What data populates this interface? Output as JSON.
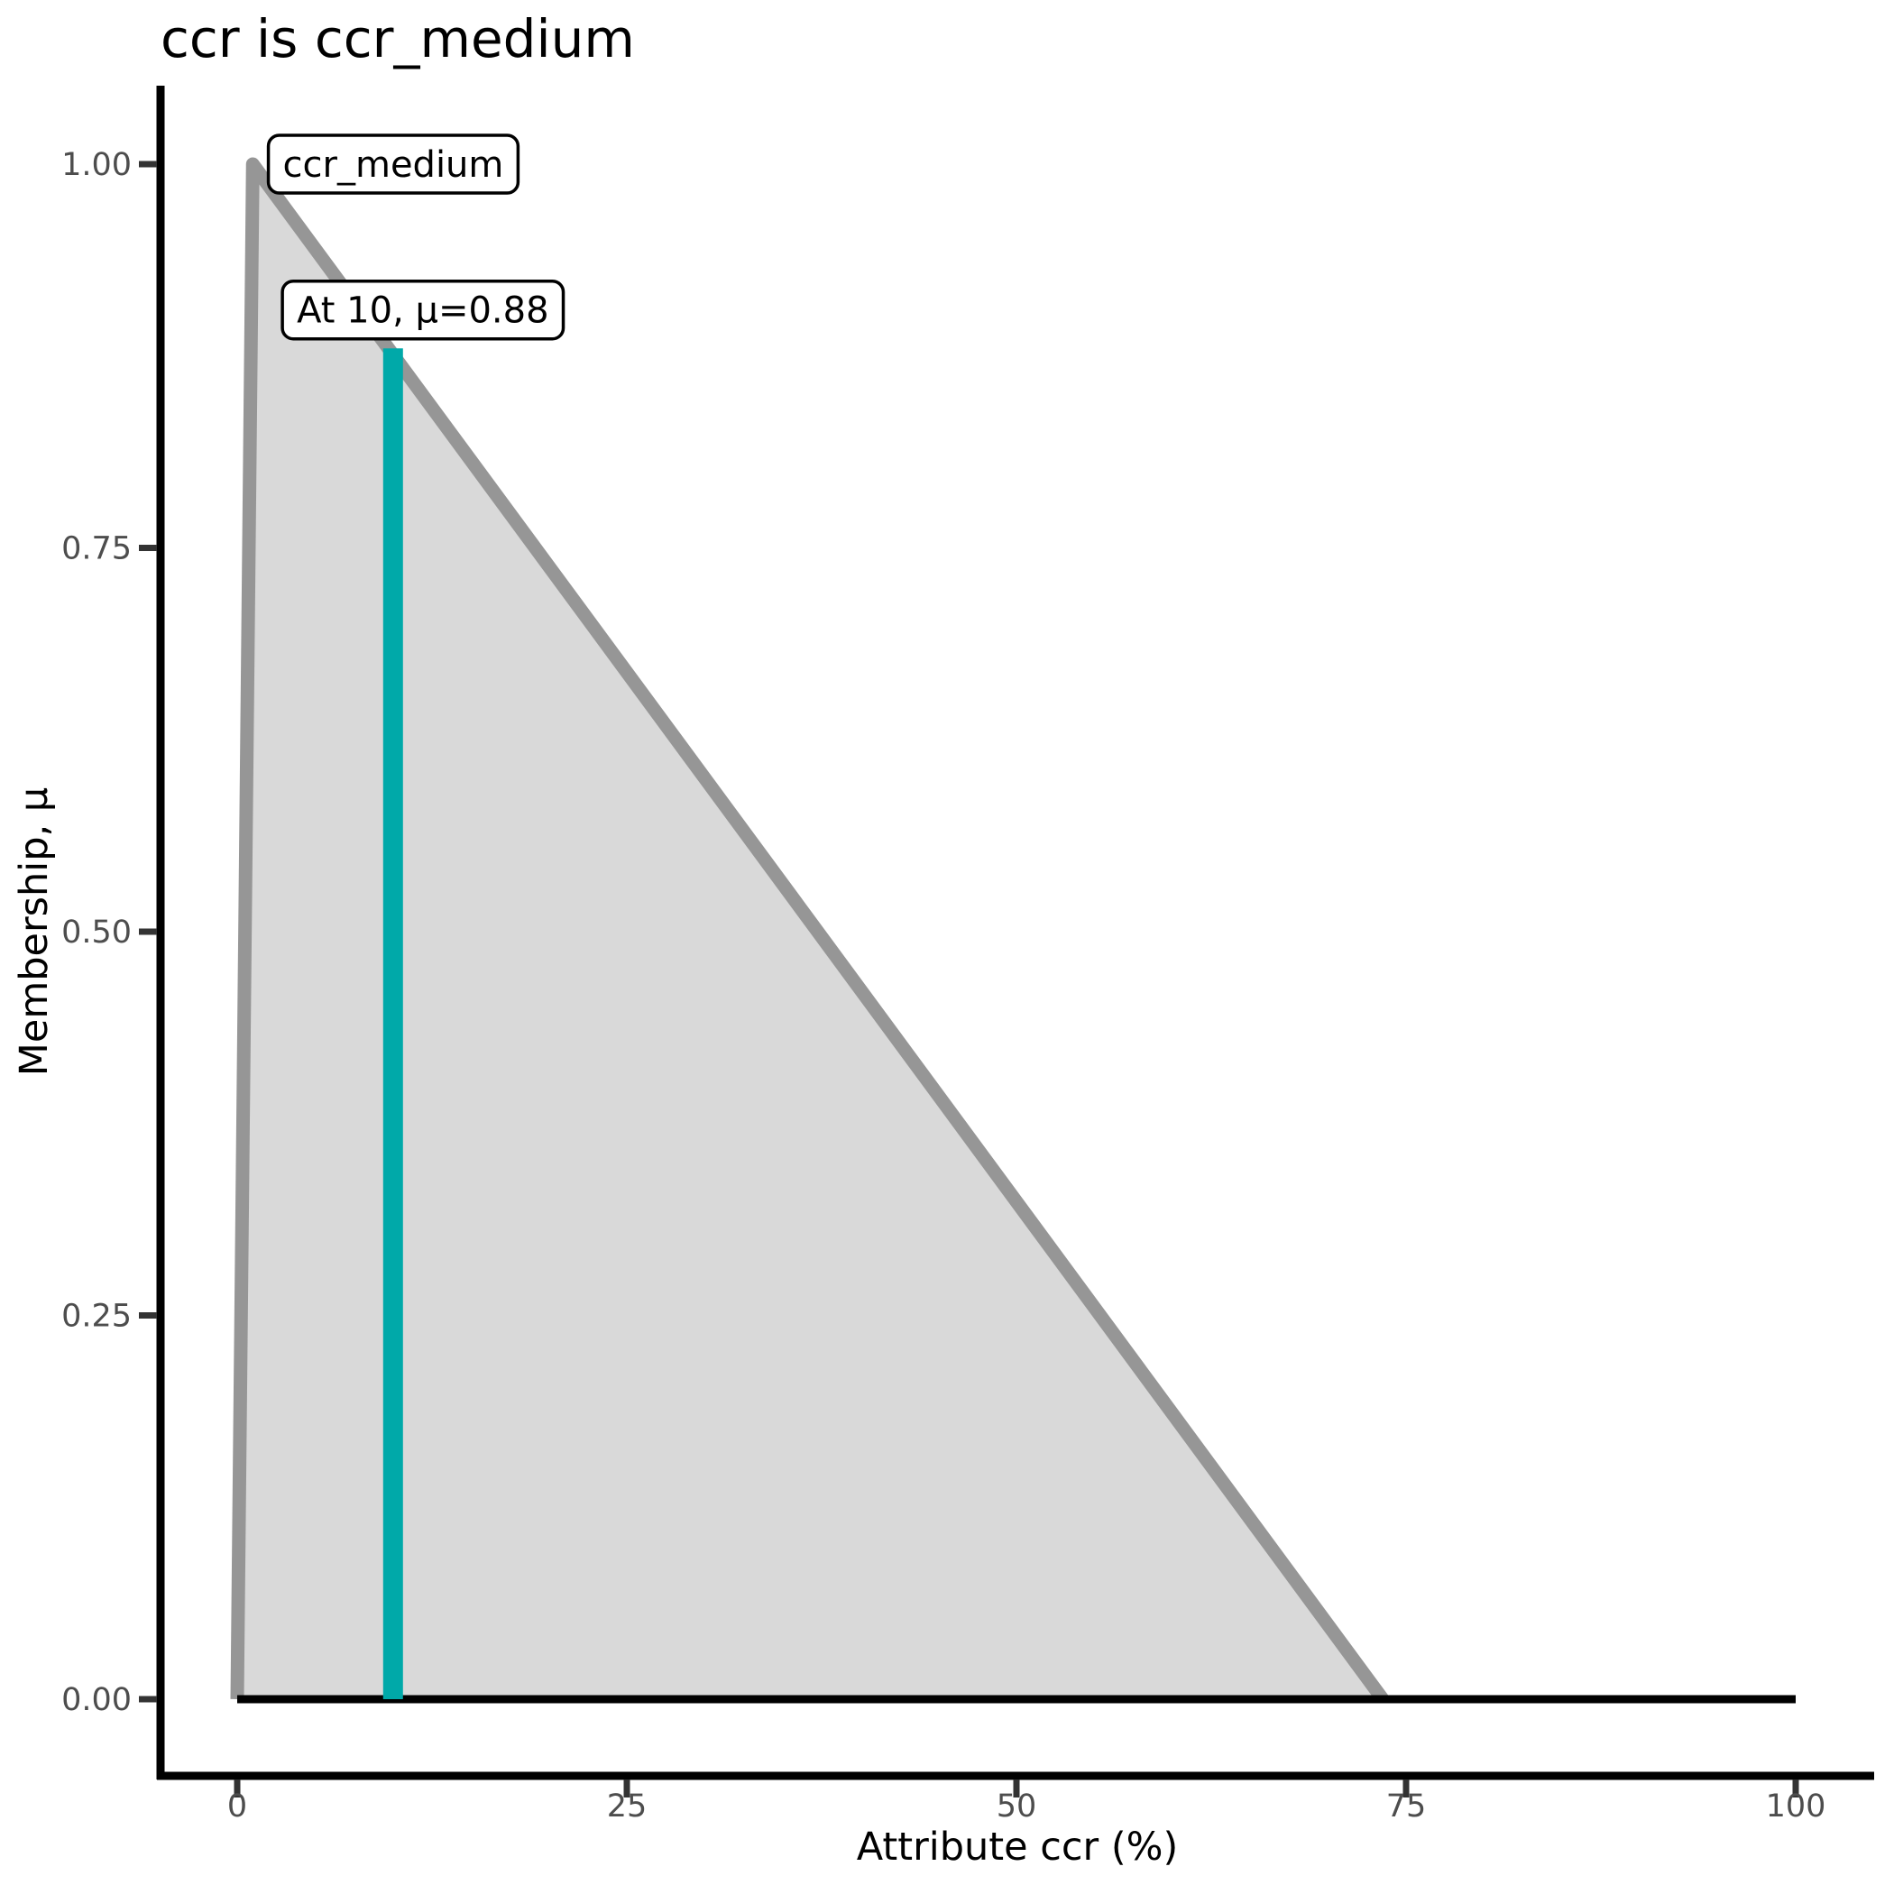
{
  "chart_data": {
    "type": "area",
    "title": "ccr is ccr_medium",
    "xlabel": "Attribute ccr (%)",
    "ylabel": "Membership, μ",
    "xlim": [
      0,
      100
    ],
    "ylim": [
      0.0,
      1.0
    ],
    "grid": false,
    "legend": false,
    "x_ticks": {
      "values": [
        0,
        25,
        50,
        75,
        100
      ],
      "labels": [
        "0",
        "25",
        "50",
        "75",
        "100"
      ]
    },
    "y_ticks": {
      "values": [
        0,
        0.25,
        0.5,
        0.75,
        1.0
      ],
      "labels": [
        "0.00",
        "0.25",
        "0.50",
        "0.75",
        "1.00"
      ]
    },
    "membership_function": {
      "name": "ccr_medium",
      "points": [
        [
          0,
          0
        ],
        [
          1,
          1
        ],
        [
          73.5,
          0
        ]
      ],
      "fill_color": "#D9D9D9",
      "line_color": "#969696"
    },
    "baseline": {
      "points": [
        [
          0,
          0
        ],
        [
          100,
          0
        ]
      ],
      "color": "#000000"
    },
    "activation": {
      "x": 10,
      "mu": 0.88,
      "color": "#00A9A9"
    },
    "annotations": [
      {
        "text": "ccr_medium",
        "anchor_x": 2.0,
        "anchor_y": 1.0
      },
      {
        "text": "At 10, μ=0.88",
        "anchor_x": 2.9,
        "anchor_y": 0.905
      }
    ],
    "colors": {
      "axis": "#000000",
      "tick_mark": "#333333",
      "tick_label": "#4D4D4D",
      "title": "#000000",
      "annotation_fill": "#FFFFFF",
      "annotation_border": "#000000",
      "background": "#FFFFFF"
    }
  }
}
